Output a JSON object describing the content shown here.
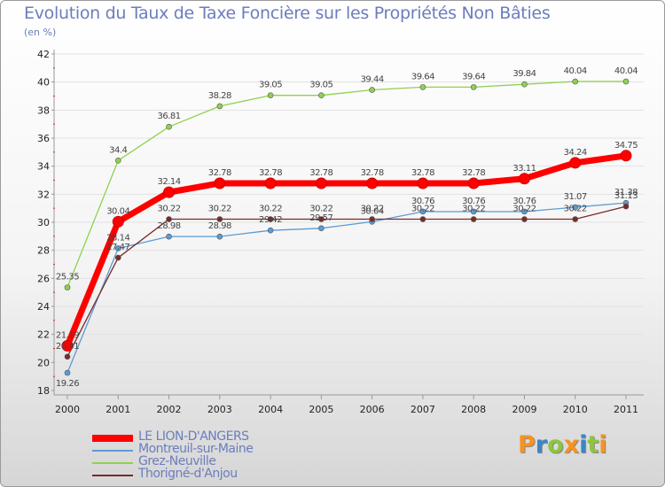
{
  "chart_data": {
    "type": "line",
    "title": "Evolution du Taux de Taxe Foncière sur les Propriétés Non Bâties",
    "subtitle": "(en %)",
    "xlabel": "",
    "ylabel": "(en %)",
    "x": [
      "2000",
      "2001",
      "2002",
      "2003",
      "2004",
      "2005",
      "2006",
      "2007",
      "2008",
      "2009",
      "2010",
      "2011"
    ],
    "ylim": [
      18,
      42
    ],
    "yticks": [
      "18",
      "20",
      "22",
      "24",
      "26",
      "28",
      "30",
      "32",
      "34",
      "36",
      "38",
      "40",
      "42"
    ],
    "grid": "horizontal",
    "legend_position": "bottom-left",
    "series": [
      {
        "name": "Grez-Neuville",
        "color": "#8fd14f",
        "values": [
          25.35,
          34.4,
          36.81,
          38.28,
          39.05,
          39.05,
          39.44,
          39.64,
          39.64,
          39.84,
          40.04,
          40.04
        ],
        "labels": [
          "25.35",
          "34.4",
          "36.81",
          "38.28",
          "39.05",
          "39.05",
          "39.44",
          "39.64",
          "39.64",
          "39.84",
          "40.04",
          "40.04"
        ]
      },
      {
        "name": "Montreuil-sur-Maine",
        "color": "#5b9bd5",
        "values": [
          19.26,
          28.14,
          28.98,
          28.98,
          29.42,
          29.57,
          30.04,
          30.76,
          30.76,
          30.76,
          31.07,
          31.38
        ],
        "labels": [
          "19.26",
          "28.14",
          "28.98",
          "28.98",
          "29.42",
          "29.57",
          "30.04",
          "30.76",
          "30.76",
          "30.76",
          "31.07",
          "31.38"
        ]
      },
      {
        "name": "Thorigné-d'Anjou",
        "color": "#7b2a2a",
        "values": [
          20.41,
          27.47,
          30.22,
          30.22,
          30.22,
          30.22,
          30.22,
          30.22,
          30.22,
          30.22,
          30.22,
          31.13
        ],
        "labels": [
          "20.41",
          "27.47",
          "30.22",
          "30.22",
          "30.22",
          "30.22",
          "30.22",
          "30.22",
          "30.22",
          "30.22",
          "30.22",
          "31.13"
        ]
      },
      {
        "name": "LE LION-D'ANGERS",
        "color": "#ff0000",
        "values": [
          21.19,
          30.04,
          32.14,
          32.78,
          32.78,
          32.78,
          32.78,
          32.78,
          32.78,
          33.11,
          34.24,
          34.75
        ],
        "labels": [
          "21.19",
          "30.04",
          "32.14",
          "32.78",
          "32.78",
          "32.78",
          "32.78",
          "32.78",
          "32.78",
          "33.11",
          "34.24",
          "34.75"
        ]
      }
    ]
  },
  "legend": [
    {
      "label": "LE LION-D'ANGERS",
      "color": "#ff0000",
      "thickness": "thick"
    },
    {
      "label": "Montreuil-sur-Maine",
      "color": "#5b9bd5",
      "thickness": "thin"
    },
    {
      "label": "Grez-Neuville",
      "color": "#8fd14f",
      "thickness": "thin"
    },
    {
      "label": "Thorigné-d'Anjou",
      "color": "#7b2a2a",
      "thickness": "thin"
    }
  ],
  "brand": {
    "text": "Proxiti",
    "letters": [
      "P",
      "r",
      "o",
      "x",
      "i",
      "t",
      "i"
    ],
    "colors": [
      "#f7931e",
      "#3a86c8",
      "#8cc63f",
      "#f7931e",
      "#3a86c8",
      "#8cc63f",
      "#f7931e"
    ]
  }
}
